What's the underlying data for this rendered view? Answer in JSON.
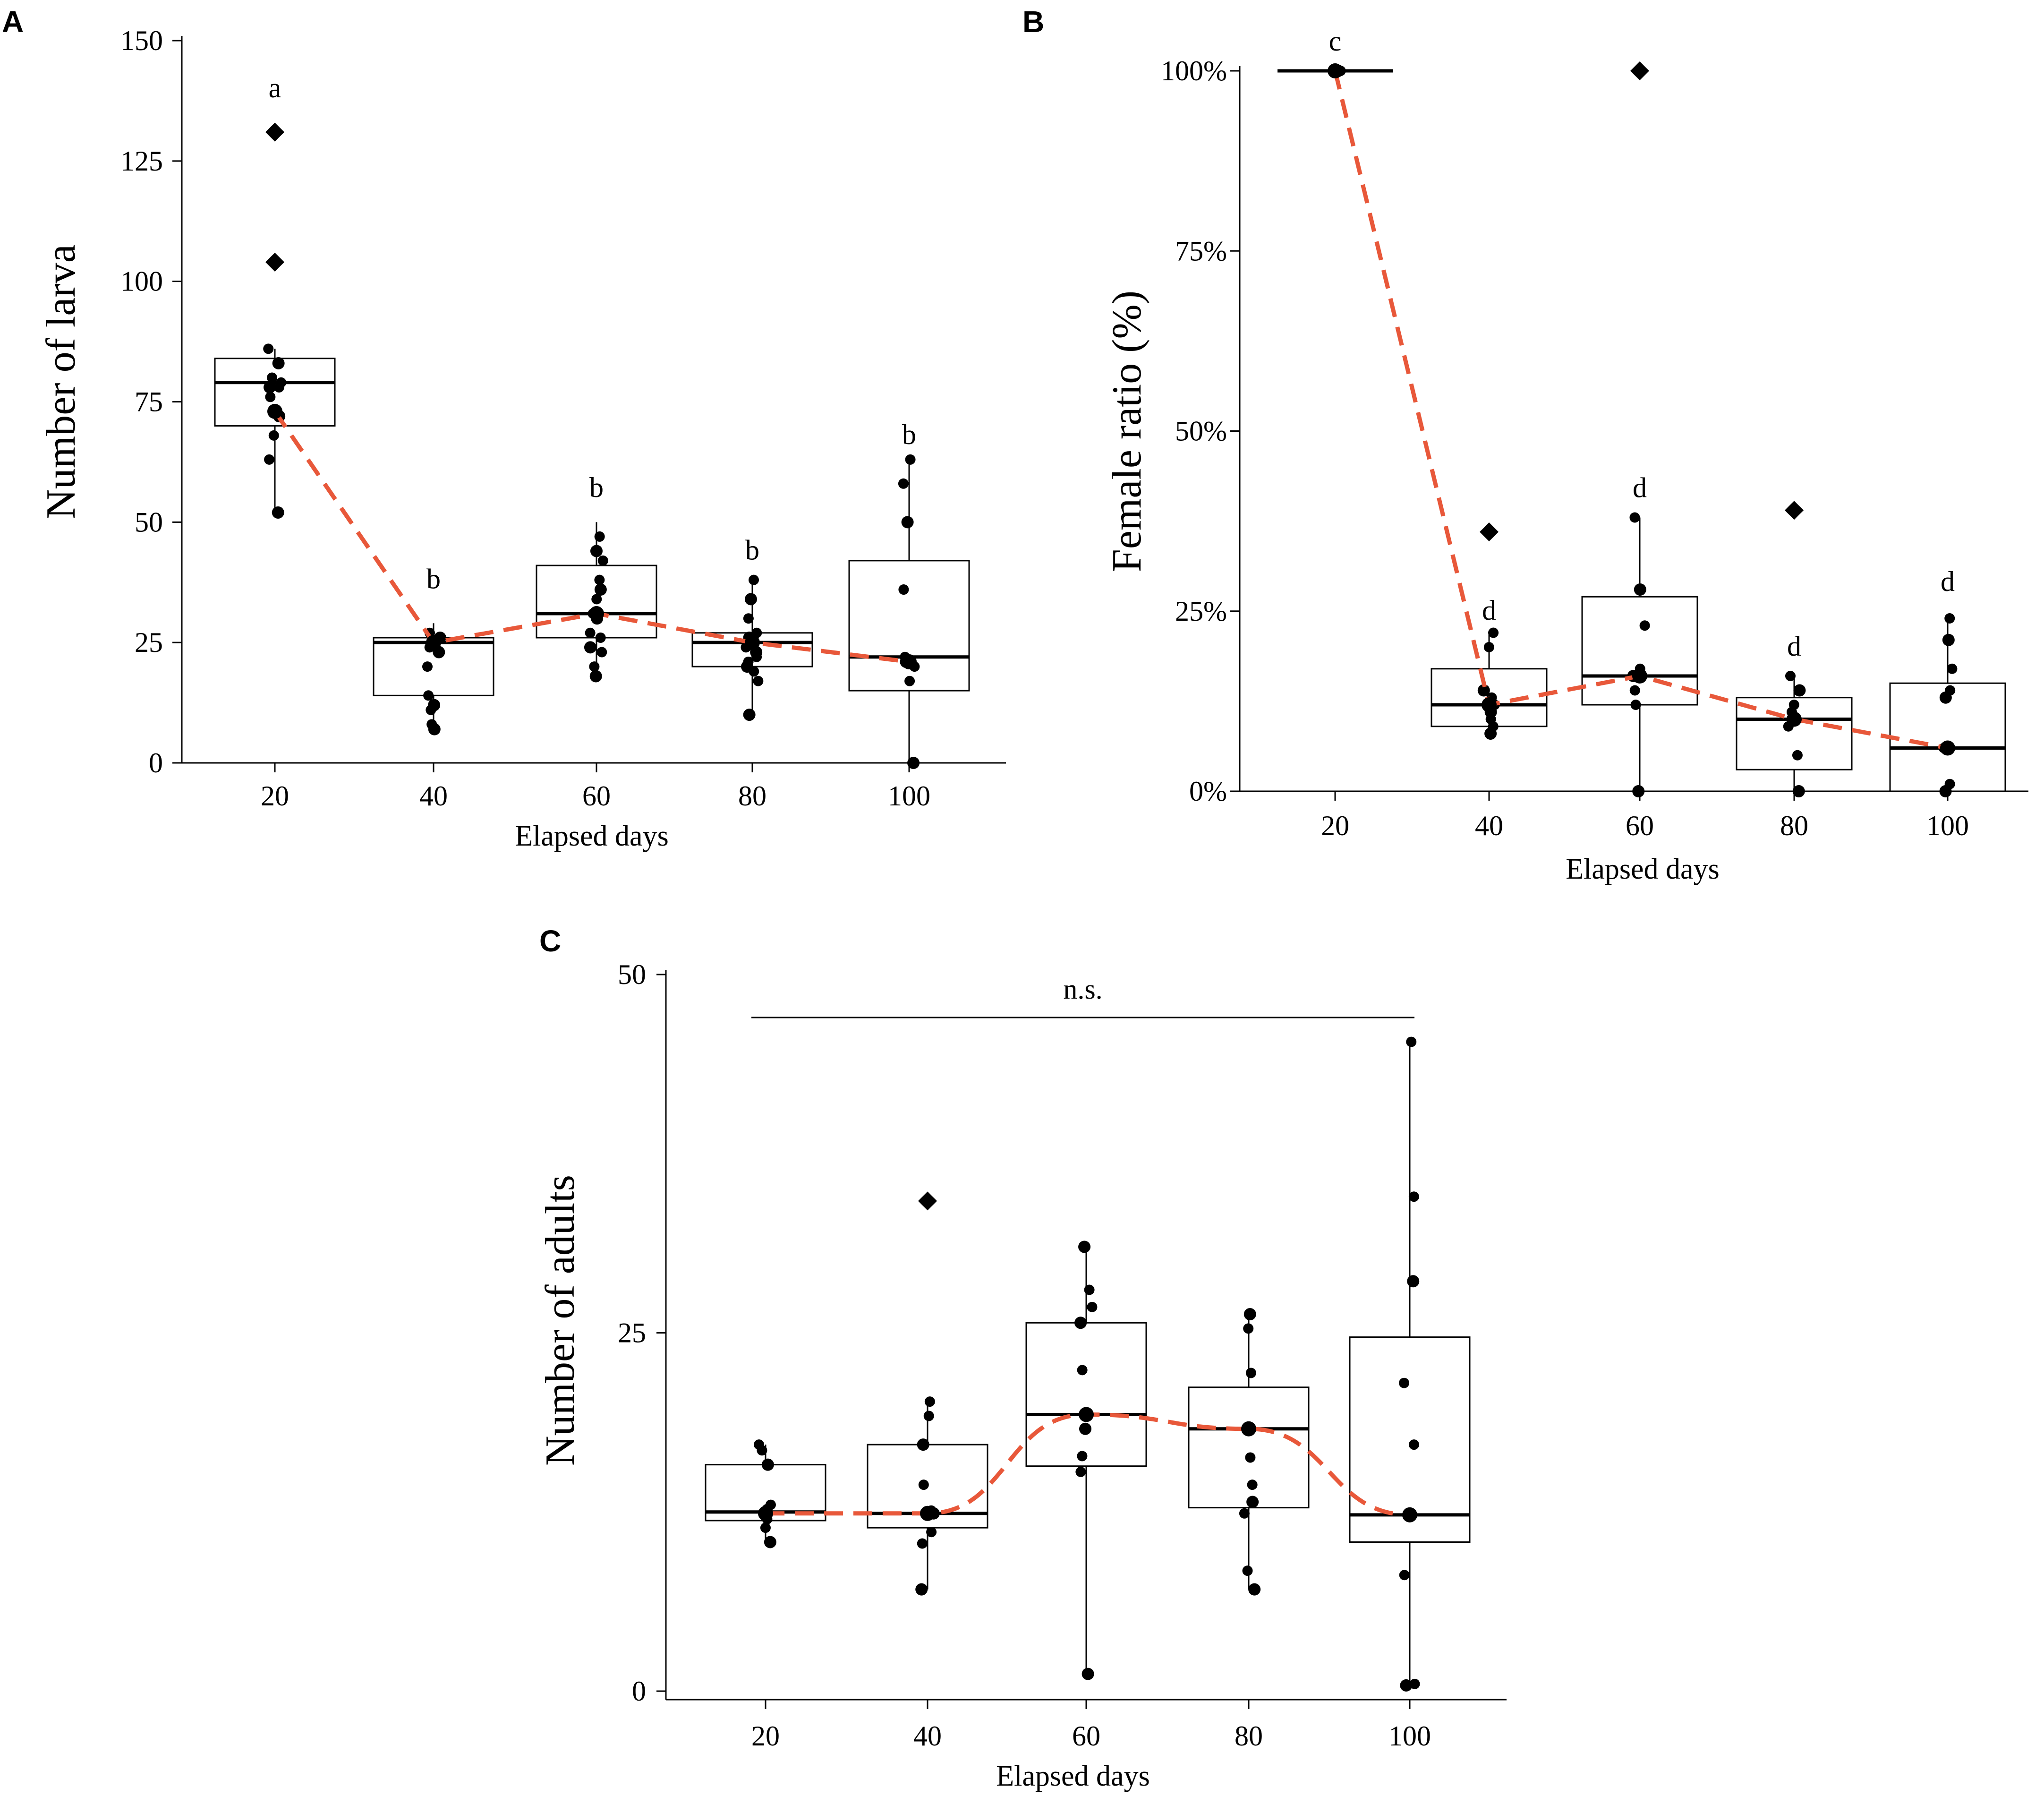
{
  "chart_data": [
    {
      "id": "A",
      "type": "box",
      "panel_label": "A",
      "xlabel": "Elapsed days",
      "ylabel": "Number of larva",
      "categories": [
        "20",
        "40",
        "60",
        "80",
        "100"
      ],
      "ylim": [
        0,
        150
      ],
      "yticks": [
        0,
        25,
        50,
        75,
        100,
        125,
        150
      ],
      "ytick_labels": [
        "0",
        "25",
        "50",
        "75",
        "100",
        "125",
        "150"
      ],
      "boxes": [
        {
          "q1": 70,
          "median": 79,
          "q3": 84,
          "whisker_low": 53,
          "whisker_high": 86
        },
        {
          "q1": 14,
          "median": 25,
          "q3": 26,
          "whisker_low": 7,
          "whisker_high": 29
        },
        {
          "q1": 26,
          "median": 31,
          "q3": 41,
          "whisker_low": 18,
          "whisker_high": 50
        },
        {
          "q1": 20,
          "median": 25,
          "q3": 27,
          "whisker_low": 10,
          "whisker_high": 38
        },
        {
          "q1": 15,
          "median": 22,
          "q3": 42,
          "whisker_low": 0,
          "whisker_high": 63
        }
      ],
      "points": [
        [
          52,
          63,
          68,
          72,
          76,
          78,
          78,
          79,
          80,
          83,
          86
        ],
        [
          7,
          8,
          11,
          12,
          14,
          20,
          23,
          24,
          25,
          26,
          27
        ],
        [
          18,
          20,
          23,
          24,
          26,
          27,
          30,
          31,
          34,
          36,
          38,
          42,
          44,
          47
        ],
        [
          10,
          17,
          19,
          20,
          21,
          22,
          23,
          24,
          25,
          26,
          27,
          30,
          34,
          38
        ],
        [
          0,
          17,
          20,
          21,
          22,
          36,
          50,
          58,
          63
        ]
      ],
      "outliers": [
        [
          104,
          131
        ],
        [],
        [],
        [],
        []
      ],
      "mean_trend": [
        73,
        25,
        31,
        25,
        21
      ],
      "letters": [
        "a",
        "b",
        "b",
        "b",
        "b"
      ],
      "letter_y": [
        140,
        38,
        57,
        44,
        68
      ]
    },
    {
      "id": "B",
      "type": "box",
      "panel_label": "B",
      "xlabel": "Elapsed days",
      "ylabel": "Female ratio (%)",
      "categories": [
        "20",
        "40",
        "60",
        "80",
        "100"
      ],
      "ylim": [
        0,
        100
      ],
      "yticks": [
        0,
        25,
        50,
        75,
        100
      ],
      "ytick_labels": [
        "0%",
        "25%",
        "50%",
        "75%",
        "100%"
      ],
      "boxes": [
        {
          "q1": 100,
          "median": 100,
          "q3": 100,
          "whisker_low": 100,
          "whisker_high": 100
        },
        {
          "q1": 9,
          "median": 12,
          "q3": 17,
          "whisker_low": 8,
          "whisker_high": 22
        },
        {
          "q1": 12,
          "median": 16,
          "q3": 27,
          "whisker_low": 0,
          "whisker_high": 38
        },
        {
          "q1": 3,
          "median": 10,
          "q3": 13,
          "whisker_low": 0,
          "whisker_high": 16
        },
        {
          "q1": 0,
          "median": 6,
          "q3": 15,
          "whisker_low": 0,
          "whisker_high": 24
        }
      ],
      "points": [
        [
          100,
          100,
          100,
          100,
          100
        ],
        [
          8,
          9,
          10,
          11,
          12,
          13,
          14,
          20,
          22
        ],
        [
          0,
          12,
          14,
          16,
          17,
          23,
          28,
          38
        ],
        [
          0,
          5,
          9,
          10,
          11,
          12,
          14,
          16
        ],
        [
          0,
          1,
          6,
          13,
          14,
          17,
          21,
          24
        ]
      ],
      "outliers": [
        [],
        [
          36
        ],
        [
          100
        ],
        [
          39
        ],
        []
      ],
      "mean_trend": [
        100,
        12,
        16,
        10,
        6
      ],
      "letters": [
        "c",
        "d",
        "d",
        "d",
        "d"
      ],
      "letter_y": [
        104,
        25,
        42,
        20,
        29
      ]
    },
    {
      "id": "C",
      "type": "box",
      "panel_label": "C",
      "xlabel": "Elapsed days",
      "ylabel": "Number of adults",
      "categories": [
        "20",
        "40",
        "60",
        "80",
        "100"
      ],
      "ylim": [
        0,
        50
      ],
      "yticks": [
        0,
        25,
        50
      ],
      "ytick_labels": [
        "0",
        "25",
        "50"
      ],
      "boxes": [
        {
          "q1": 11.9,
          "median": 12.5,
          "q3": 15.8,
          "whisker_low": 10.4,
          "whisker_high": 17.2
        },
        {
          "q1": 11.4,
          "median": 12.4,
          "q3": 17.2,
          "whisker_low": 7.1,
          "whisker_high": 20.2
        },
        {
          "q1": 15.7,
          "median": 19.3,
          "q3": 25.7,
          "whisker_low": 1.2,
          "whisker_high": 31.0
        },
        {
          "q1": 12.8,
          "median": 18.3,
          "q3": 21.2,
          "whisker_low": 7.1,
          "whisker_high": 26.3
        },
        {
          "q1": 10.4,
          "median": 12.3,
          "q3": 24.7,
          "whisker_low": 0.4,
          "whisker_high": 45.3
        }
      ],
      "points": [
        [
          10.4,
          11.4,
          12.0,
          12.4,
          12.7,
          13.0,
          15.8,
          16.8,
          17.2
        ],
        [
          7.1,
          10.3,
          11.1,
          12.4,
          12.6,
          14.4,
          17.2,
          19.2,
          20.2
        ],
        [
          1.2,
          15.3,
          16.4,
          18.3,
          19.4,
          22.4,
          25.7,
          26.8,
          28.0,
          31.0
        ],
        [
          7.1,
          8.4,
          12.4,
          13.2,
          14.4,
          16.3,
          18.3,
          22.2,
          25.3,
          26.3
        ],
        [
          0.4,
          0.5,
          8.1,
          12.3,
          17.2,
          21.5,
          28.6,
          34.5,
          45.3
        ]
      ],
      "outliers": [
        [],
        [
          34.2
        ],
        [],
        [],
        []
      ],
      "mean_trend": [
        12.4,
        12.4,
        19.3,
        18.3,
        12.3
      ],
      "annotation": "n.s.",
      "annotation_bar": {
        "from": "20",
        "to": "100",
        "y": 47
      }
    }
  ]
}
